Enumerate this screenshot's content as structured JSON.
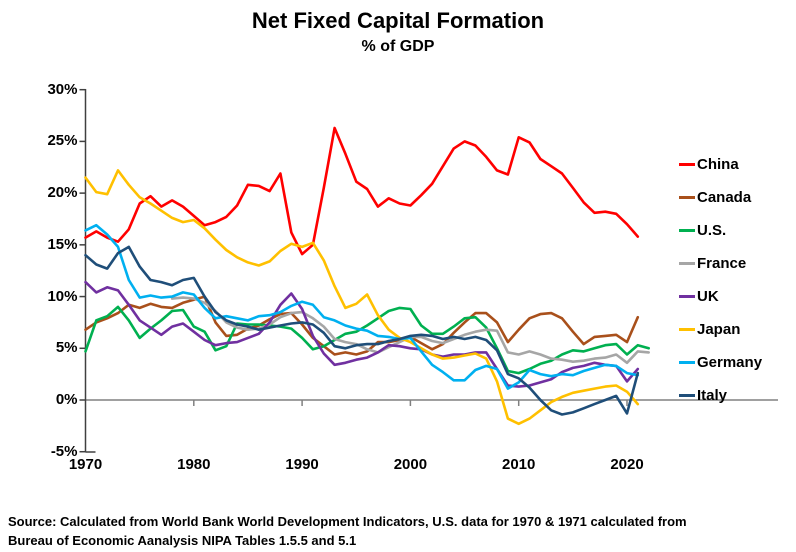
{
  "chart": {
    "title": "Net Fixed Capital Formation",
    "subtitle": "% of GDP"
  },
  "source": {
    "line1": "Source:  Calculated from World Bank World Development Indicators, U.S. data for 1970 & 1971 calculated from",
    "line2": "Bureau of Economic Aanalysis NIPA Tables 1.5.5 and 5.1"
  },
  "chart_data": {
    "type": "line",
    "title": "Net Fixed Capital Formation",
    "subtitle": "% of GDP",
    "xlabel": "",
    "ylabel": "% of GDP",
    "x_axis": {
      "ticks": [
        1970,
        1980,
        1990,
        2000,
        2010,
        2020
      ],
      "range": [
        1970,
        2022
      ]
    },
    "y_axis": {
      "ticks": [
        30,
        25,
        20,
        15,
        10,
        5,
        0,
        -5
      ],
      "unit": "%",
      "range": [
        -5,
        30
      ]
    },
    "grid": "zero-line-only",
    "legend_position": "right",
    "axis_color": "#404040",
    "zero_line_color": "#808080",
    "series": [
      {
        "name": "China",
        "color": "#FF0000",
        "start_year": 1970,
        "values": [
          15.7,
          16.3,
          15.7,
          15.3,
          16.5,
          19.0,
          19.7,
          18.7,
          19.3,
          18.7,
          17.8,
          16.9,
          17.2,
          17.7,
          18.8,
          20.8,
          20.7,
          20.2,
          21.9,
          16.2,
          14.1,
          15.0,
          20.5,
          26.3,
          23.8,
          21.1,
          20.4,
          18.7,
          19.5,
          19.0,
          18.8,
          19.8,
          20.9,
          22.6,
          24.3,
          25.0,
          24.6,
          23.5,
          22.2,
          21.8,
          25.4,
          24.9,
          23.3,
          22.6,
          21.9,
          20.5,
          19.1,
          18.1,
          18.2,
          18.0,
          17.0,
          15.8
        ]
      },
      {
        "name": "Canada",
        "color": "#A9501B",
        "start_year": 1970,
        "values": [
          6.8,
          7.5,
          7.9,
          8.4,
          9.2,
          8.9,
          9.3,
          9.0,
          8.9,
          9.4,
          9.7,
          10.0,
          7.5,
          6.2,
          6.3,
          6.9,
          7.2,
          7.8,
          8.3,
          8.4,
          7.3,
          6.0,
          5.2,
          4.4,
          4.6,
          4.4,
          4.7,
          5.6,
          5.6,
          5.8,
          6.1,
          5.5,
          4.9,
          5.4,
          6.5,
          7.5,
          8.4,
          8.4,
          7.5,
          5.6,
          6.8,
          7.9,
          8.3,
          8.4,
          7.9,
          6.6,
          5.4,
          6.1,
          6.2,
          6.3,
          5.6,
          8.0
        ]
      },
      {
        "name": "U.S.",
        "color": "#00B050",
        "start_year": 1970,
        "values": [
          4.7,
          7.7,
          8.1,
          9.0,
          7.7,
          6.0,
          6.9,
          7.7,
          8.6,
          8.7,
          7.1,
          6.6,
          4.8,
          5.2,
          7.4,
          7.3,
          7.3,
          7.2,
          7.1,
          6.9,
          6.0,
          4.9,
          5.2,
          5.8,
          6.4,
          6.6,
          7.2,
          7.9,
          8.6,
          8.9,
          8.8,
          7.2,
          6.4,
          6.4,
          7.1,
          7.9,
          8.0,
          7.0,
          5.0,
          2.8,
          2.6,
          3.0,
          3.5,
          3.8,
          4.4,
          4.8,
          4.7,
          5.0,
          5.3,
          5.4,
          4.4,
          5.3,
          5.0
        ]
      },
      {
        "name": "France",
        "color": "#A6A6A6",
        "start_year": 1978,
        "values": [
          9.8,
          9.9,
          9.8,
          9.4,
          8.6,
          7.5,
          7.0,
          6.8,
          6.9,
          7.3,
          8.0,
          8.4,
          8.5,
          7.9,
          7.1,
          5.9,
          5.6,
          5.4,
          4.9,
          4.6,
          5.1,
          5.6,
          6.1,
          6.1,
          5.7,
          5.5,
          5.9,
          6.3,
          6.6,
          6.8,
          6.7,
          4.6,
          4.4,
          4.7,
          4.4,
          4.0,
          3.9,
          3.7,
          3.8,
          4.0,
          4.1,
          4.4,
          3.6,
          4.7,
          4.6
        ]
      },
      {
        "name": "UK",
        "color": "#7030A0",
        "start_year": 1970,
        "values": [
          11.4,
          10.4,
          10.9,
          10.6,
          9.2,
          7.7,
          7.0,
          6.3,
          7.1,
          7.4,
          6.6,
          5.8,
          5.3,
          5.5,
          5.6,
          6.0,
          6.4,
          7.5,
          9.2,
          10.3,
          8.8,
          6.2,
          4.5,
          3.4,
          3.6,
          3.9,
          4.1,
          4.6,
          5.3,
          5.2,
          5.0,
          4.9,
          4.4,
          4.2,
          4.4,
          4.4,
          4.6,
          4.6,
          3.0,
          1.4,
          1.3,
          1.4,
          1.7,
          2.0,
          2.7,
          3.1,
          3.3,
          3.6,
          3.4,
          3.3,
          1.8,
          3.0
        ]
      },
      {
        "name": "Japan",
        "color": "#FFC000",
        "start_year": 1970,
        "values": [
          21.5,
          20.1,
          19.9,
          22.2,
          20.8,
          19.6,
          19.0,
          18.3,
          17.6,
          17.2,
          17.4,
          16.6,
          15.5,
          14.5,
          13.8,
          13.3,
          13.0,
          13.4,
          14.4,
          15.1,
          14.8,
          15.2,
          13.5,
          11.0,
          8.9,
          9.3,
          10.2,
          8.2,
          6.8,
          6.0,
          5.6,
          5.0,
          4.4,
          4.0,
          4.1,
          4.3,
          4.5,
          4.0,
          1.8,
          -1.8,
          -2.3,
          -1.8,
          -1.0,
          -0.2,
          0.3,
          0.7,
          0.9,
          1.1,
          1.3,
          1.4,
          0.8,
          -0.4
        ]
      },
      {
        "name": "Germany",
        "color": "#00B0F0",
        "start_year": 1970,
        "values": [
          16.4,
          16.9,
          16.0,
          14.8,
          11.6,
          9.9,
          10.1,
          9.9,
          10.0,
          10.4,
          10.2,
          8.9,
          7.9,
          8.1,
          7.9,
          7.7,
          8.1,
          8.2,
          8.5,
          9.1,
          9.5,
          9.2,
          8.0,
          7.7,
          7.2,
          6.9,
          6.7,
          6.2,
          6.1,
          5.9,
          6.0,
          4.7,
          3.4,
          2.7,
          1.9,
          1.9,
          2.9,
          3.3,
          3.0,
          1.1,
          1.7,
          2.9,
          2.5,
          2.3,
          2.5,
          2.4,
          2.8,
          3.1,
          3.4,
          3.3,
          2.6,
          2.4
        ]
      },
      {
        "name": "Italy",
        "color": "#1F4E79",
        "start_year": 1970,
        "values": [
          14.0,
          13.1,
          12.7,
          14.2,
          14.8,
          12.9,
          11.6,
          11.4,
          11.1,
          11.6,
          11.8,
          10.0,
          8.5,
          7.7,
          7.3,
          7.1,
          6.8,
          7.0,
          7.2,
          7.4,
          7.5,
          7.3,
          6.5,
          5.2,
          5.0,
          5.3,
          5.4,
          5.4,
          5.7,
          5.9,
          6.2,
          6.3,
          6.2,
          5.9,
          6.1,
          5.9,
          6.1,
          5.8,
          4.8,
          2.5,
          2.1,
          1.2,
          0.0,
          -1.0,
          -1.4,
          -1.2,
          -0.8,
          -0.4,
          0.0,
          0.4,
          -1.3,
          2.6
        ]
      }
    ]
  }
}
